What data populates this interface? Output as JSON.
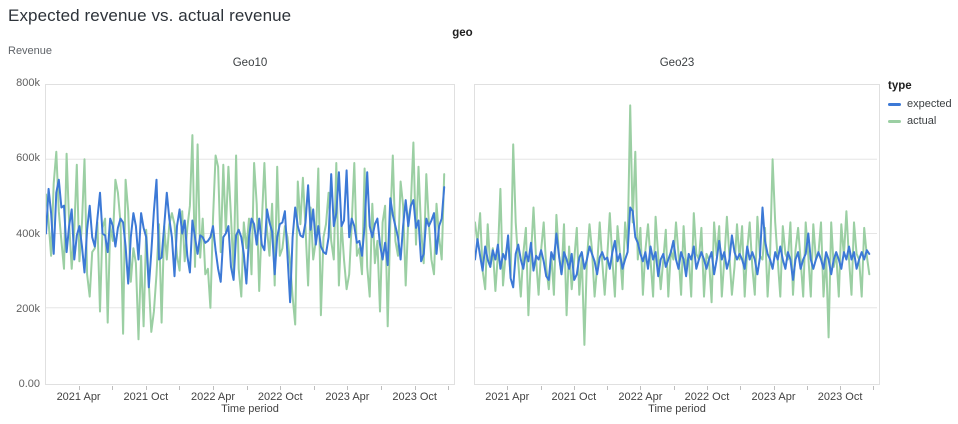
{
  "title": "Expected revenue vs. actual revenue",
  "facet_field_label": "geo",
  "y_axis": {
    "title": "Revenue",
    "tick_labels_top_down": [
      "800k",
      "600k",
      "400k",
      "200k",
      "0.00"
    ]
  },
  "x_axis": {
    "title": "Time period",
    "months_total": 36.6,
    "tick_months": [
      3,
      6,
      9,
      12,
      15,
      18,
      21,
      24,
      27,
      30,
      33,
      36
    ],
    "labels": [
      {
        "month": 3,
        "text": "2021 Apr"
      },
      {
        "month": 9,
        "text": "2021 Oct"
      },
      {
        "month": 15,
        "text": "2022 Apr"
      },
      {
        "month": 21,
        "text": "2022 Oct"
      },
      {
        "month": 27,
        "text": "2023 Apr"
      },
      {
        "month": 33,
        "text": "2023 Oct"
      }
    ]
  },
  "legend": {
    "title": "type",
    "items": [
      {
        "label": "expected",
        "color": "#3c79d6"
      },
      {
        "label": "actual",
        "color": "#9bcfa3"
      }
    ]
  },
  "colors": {
    "expected_line": "#3c79d6",
    "actual_line": "#9bcfa3",
    "gridline": "#e6e6e6",
    "panel_border": "#e0e0e0"
  },
  "chart_data": {
    "type": "line",
    "title": "Expected revenue vs. actual revenue",
    "xlabel": "Time period",
    "ylabel": "Revenue",
    "value_unit": "thousands (k)",
    "x_frequency": "weekly, Jan 2021 - Dec 2023",
    "ylim": [
      0,
      800
    ],
    "gridlines": [
      200,
      400,
      600
    ],
    "legend_position": "right",
    "facets": [
      {
        "name": "Geo10",
        "series": [
          {
            "name": "expected",
            "values": [
              400,
              520,
              455,
              345,
              510,
              545,
              470,
              475,
              350,
              420,
              465,
              330,
              395,
              420,
              365,
              295,
              410,
              475,
              390,
              365,
              440,
              510,
              400,
              395,
              350,
              440,
              420,
              365,
              415,
              440,
              430,
              365,
              265,
              390,
              455,
              420,
              330,
              455,
              415,
              390,
              255,
              350,
              460,
              545,
              330,
              335,
              420,
              510,
              440,
              390,
              285,
              420,
              465,
              400,
              435,
              340,
              295,
              435,
              390,
              345,
              395,
              390,
              375,
              380,
              390,
              420,
              355,
              305,
              270,
              390,
              400,
              420,
              310,
              275,
              395,
              410,
              390,
              345,
              265,
              390,
              440,
              425,
              370,
              440,
              370,
              355,
              465,
              430,
              405,
              290,
              390,
              425,
              430,
              460,
              340,
              215,
              390,
              470,
              420,
              395,
              390,
              430,
              530,
              410,
              465,
              370,
              420,
              365,
              350,
              345,
              390,
              560,
              420,
              455,
              565,
              420,
              435,
              570,
              390,
              440,
              420,
              375,
              380,
              340,
              420,
              565,
              420,
              390,
              425,
              440,
              370,
              330,
              375,
              315,
              495,
              450,
              420,
              390,
              330,
              420,
              490,
              420,
              475,
              490,
              415,
              435,
              325,
              345,
              440,
              420,
              435,
              455,
              345,
              420,
              440,
              525
            ]
          },
          {
            "name": "actual",
            "values": [
              505,
              430,
              340,
              535,
              620,
              460,
              380,
              305,
              615,
              430,
              305,
              410,
              585,
              325,
              430,
              600,
              290,
              230,
              350,
              360,
              430,
              190,
              415,
              440,
              160,
              420,
              380,
              545,
              510,
              430,
              130,
              545,
              460,
              270,
              360,
              320,
              115,
              340,
              150,
              410,
              270,
              135,
              190,
              290,
              425,
              160,
              420,
              330,
              425,
              455,
              425,
              340,
              300,
              460,
              325,
              415,
              475,
              665,
              310,
              640,
              335,
              440,
              290,
              305,
              200,
              440,
              610,
              580,
              350,
              585,
              405,
              580,
              445,
              290,
              610,
              305,
              230,
              430,
              360,
              440,
              290,
              590,
              480,
              245,
              430,
              590,
              410,
              340,
              480,
              260,
              580,
              340,
              360,
              420,
              390,
              320,
              230,
              155,
              540,
              425,
              550,
              415,
              260,
              470,
              330,
              380,
              575,
              180,
              390,
              425,
              510,
              380,
              330,
              590,
              260,
              430,
              330,
              250,
              290,
              425,
              590,
              340,
              360,
              290,
              575,
              310,
              230,
              480,
              320,
              380,
              190,
              430,
              475,
              150,
              430,
              610,
              380,
              340,
              540,
              475,
              260,
              440,
              475,
              645,
              370,
              580,
              410,
              320,
              560,
              430,
              330,
              290,
              480,
              390,
              330,
              560
            ]
          }
        ]
      },
      {
        "name": "Geo23",
        "series": [
          {
            "name": "expected",
            "values": [
              330,
              385,
              340,
              300,
              365,
              330,
              310,
              355,
              330,
              370,
              305,
              345,
              330,
              395,
              280,
              255,
              345,
              370,
              330,
              305,
              350,
              325,
              375,
              300,
              340,
              330,
              355,
              325,
              285,
              275,
              350,
              330,
              400,
              340,
              290,
              350,
              330,
              305,
              345,
              275,
              290,
              335,
              350,
              305,
              330,
              365,
              345,
              325,
              290,
              335,
              350,
              330,
              335,
              305,
              350,
              380,
              325,
              345,
              305,
              330,
              350,
              470,
              460,
              390,
              375,
              345,
              325,
              350,
              305,
              365,
              330,
              350,
              285,
              330,
              345,
              310,
              330,
              350,
              380,
              330,
              305,
              350,
              330,
              285,
              345,
              330,
              365,
              305,
              330,
              350,
              330,
              305,
              330,
              350,
              290,
              330,
              380,
              330,
              350,
              305,
              330,
              395,
              350,
              330,
              345,
              330,
              305,
              365,
              330,
              350,
              330,
              290,
              335,
              470,
              380,
              345,
              330,
              305,
              350,
              330,
              365,
              330,
              305,
              350,
              330,
              275,
              330,
              350,
              305,
              330,
              345,
              400,
              330,
              305,
              330,
              350,
              330,
              305,
              350,
              330,
              290,
              330,
              350,
              330,
              305,
              350,
              330,
              365,
              330,
              350,
              305,
              330,
              350,
              330,
              355,
              345
            ]
          },
          {
            "name": "actual",
            "values": [
              430,
              375,
              455,
              300,
              250,
              425,
              310,
              360,
              245,
              345,
              520,
              260,
              340,
              380,
              285,
              640,
              430,
              325,
              230,
              345,
              415,
              180,
              340,
              470,
              330,
              235,
              355,
              430,
              310,
              250,
              345,
              235,
              450,
              340,
              290,
              425,
              180,
              365,
              250,
              330,
              415,
              235,
              340,
              100,
              330,
              425,
              355,
              230,
              310,
              430,
              325,
              235,
              340,
              455,
              330,
              230,
              420,
              345,
              250,
              430,
              360,
              745,
              430,
              620,
              330,
              415,
              235,
              355,
              425,
              330,
              230,
              445,
              340,
              250,
              330,
              410,
              230,
              355,
              330,
              430,
              345,
              235,
              420,
              310,
              340,
              230,
              455,
              345,
              330,
              415,
              230,
              345,
              330,
              215,
              430,
              340,
              420,
              230,
              330,
              445,
              340,
              235,
              310,
              425,
              330,
              420,
              230,
              355,
              430,
              310,
              235,
              445,
              340,
              330,
              415,
              230,
              345,
              600,
              430,
              330,
              230,
              420,
              345,
              330,
              430,
              235,
              355,
              415,
              330,
              230,
              430,
              340,
              230,
              425,
              330,
              345,
              430,
              230,
              340,
              120,
              430,
              310,
              345,
              230,
              425,
              340,
              460,
              330,
              235,
              430,
              345,
              330,
              230,
              415,
              340,
              290
            ]
          }
        ]
      }
    ]
  }
}
